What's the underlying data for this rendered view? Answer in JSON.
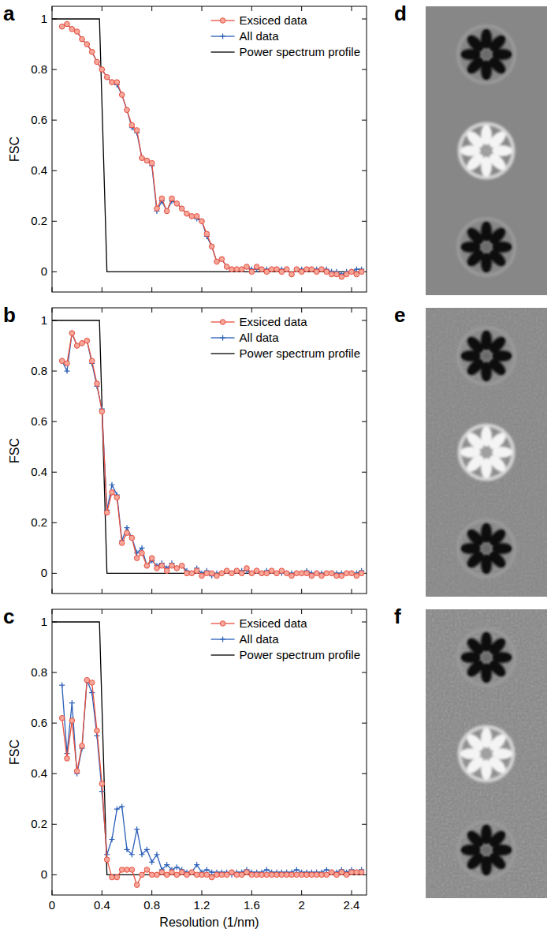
{
  "chart_data": [
    {
      "type": "line",
      "panel": "a",
      "ylabel": "FSC",
      "tick_labels": "y",
      "grid": false,
      "legend": "upper right",
      "xlim": [
        0,
        2.52
      ],
      "ylim": [
        -0.08,
        1.05
      ],
      "xticks": [
        0,
        0.4,
        0.8,
        1.2,
        1.6,
        2,
        2.4
      ],
      "yticks": [
        0,
        0.2,
        0.4,
        0.6,
        0.8,
        1
      ],
      "x": [
        0.08,
        0.12,
        0.16,
        0.2,
        0.24,
        0.28,
        0.32,
        0.36,
        0.4,
        0.44,
        0.48,
        0.52,
        0.56,
        0.6,
        0.64,
        0.68,
        0.72,
        0.76,
        0.8,
        0.84,
        0.88,
        0.92,
        0.96,
        1,
        1.04,
        1.08,
        1.12,
        1.16,
        1.2,
        1.24,
        1.28,
        1.32,
        1.36,
        1.4,
        1.44,
        1.48,
        1.52,
        1.56,
        1.6,
        1.64,
        1.68,
        1.72,
        1.76,
        1.8,
        1.84,
        1.88,
        1.92,
        1.96,
        2,
        2.04,
        2.08,
        2.12,
        2.16,
        2.2,
        2.24,
        2.28,
        2.32,
        2.36,
        2.4,
        2.44,
        2.48
      ],
      "series": [
        {
          "name": "Exsiced data",
          "color": "#e8503f",
          "marker": "circle",
          "line_style": "solid",
          "values": [
            0.97,
            0.98,
            0.96,
            0.95,
            0.92,
            0.9,
            0.87,
            0.83,
            0.8,
            0.77,
            0.75,
            0.75,
            0.7,
            0.64,
            0.58,
            0.56,
            0.45,
            0.44,
            0.43,
            0.25,
            0.29,
            0.24,
            0.29,
            0.27,
            0.25,
            0.23,
            0.22,
            0.22,
            0.2,
            0.15,
            0.1,
            0.04,
            0.05,
            0.02,
            0.01,
            0.01,
            0.01,
            0.02,
            0,
            0.02,
            0.01,
            0,
            0.01,
            0.01,
            0,
            0.01,
            -0.01,
            0.01,
            0,
            0.01,
            0.01,
            0,
            0.01,
            0,
            -0.01,
            -0.01,
            -0.02,
            -0.01,
            0,
            -0.01,
            0
          ]
        },
        {
          "name": "All data",
          "color": "#2b5fb8",
          "marker": "plus",
          "line_style": "solid",
          "values": [
            0.97,
            0.98,
            0.96,
            0.95,
            0.92,
            0.9,
            0.87,
            0.83,
            0.8,
            0.77,
            0.75,
            0.74,
            0.7,
            0.64,
            0.57,
            0.55,
            0.45,
            0.44,
            0.42,
            0.24,
            0.28,
            0.24,
            0.28,
            0.27,
            0.25,
            0.23,
            0.22,
            0.21,
            0.2,
            0.14,
            0.1,
            0.04,
            0.05,
            0.02,
            0.01,
            0.01,
            0.01,
            0.02,
            0.01,
            0.01,
            0.01,
            0.01,
            0.01,
            0.01,
            0.01,
            0.01,
            -0.01,
            0.01,
            0.01,
            0.01,
            0.01,
            0.01,
            0.01,
            0.01,
            0,
            0,
            -0.01,
            0,
            0,
            0.01,
            0.01
          ]
        },
        {
          "name": "Power spectrum profile",
          "color": "#000000",
          "line_style": "solid",
          "x": [
            0,
            0.38,
            0.44,
            2.5
          ],
          "values": [
            1,
            1,
            0,
            0
          ]
        }
      ]
    },
    {
      "type": "line",
      "panel": "b",
      "ylabel": "FSC",
      "tick_labels": "y",
      "grid": false,
      "legend": "upper right",
      "xlim": [
        0,
        2.52
      ],
      "ylim": [
        -0.08,
        1.05
      ],
      "xticks": [
        0,
        0.4,
        0.8,
        1.2,
        1.6,
        2,
        2.4
      ],
      "yticks": [
        0,
        0.2,
        0.4,
        0.6,
        0.8,
        1
      ],
      "x": [
        0.08,
        0.12,
        0.16,
        0.2,
        0.24,
        0.28,
        0.32,
        0.36,
        0.4,
        0.44,
        0.48,
        0.52,
        0.56,
        0.6,
        0.64,
        0.68,
        0.72,
        0.76,
        0.8,
        0.84,
        0.88,
        0.92,
        0.96,
        1,
        1.04,
        1.08,
        1.12,
        1.16,
        1.2,
        1.24,
        1.28,
        1.32,
        1.36,
        1.4,
        1.44,
        1.48,
        1.52,
        1.56,
        1.6,
        1.64,
        1.68,
        1.72,
        1.76,
        1.8,
        1.84,
        1.88,
        1.92,
        1.96,
        2,
        2.04,
        2.08,
        2.12,
        2.16,
        2.2,
        2.24,
        2.28,
        2.32,
        2.36,
        2.4,
        2.44,
        2.48
      ],
      "series": [
        {
          "name": "Exsiced data",
          "color": "#e8503f",
          "marker": "circle",
          "line_style": "solid",
          "values": [
            0.84,
            0.83,
            0.95,
            0.9,
            0.91,
            0.92,
            0.84,
            0.75,
            0.64,
            0.24,
            0.32,
            0.3,
            0.12,
            0.16,
            0.14,
            0.06,
            0.08,
            0.03,
            0.06,
            0.02,
            0.03,
            0.01,
            0.03,
            0.02,
            0.03,
            0,
            0,
            0.01,
            -0.01,
            0,
            0,
            -0.01,
            0,
            0.01,
            0,
            0.01,
            0,
            0.02,
            0,
            0.01,
            0,
            0,
            0.01,
            0,
            0.01,
            0,
            -0.01,
            0,
            0,
            0,
            -0.01,
            0,
            -0.01,
            0,
            0,
            -0.01,
            -0.01,
            0,
            0,
            -0.01,
            0
          ]
        },
        {
          "name": "All data",
          "color": "#2b5fb8",
          "marker": "plus",
          "line_style": "solid",
          "values": [
            0.84,
            0.8,
            0.95,
            0.9,
            0.91,
            0.92,
            0.83,
            0.74,
            0.65,
            0.25,
            0.35,
            0.31,
            0.13,
            0.18,
            0.14,
            0.08,
            0.1,
            0.03,
            0.05,
            0.03,
            0.04,
            0.02,
            0.04,
            0.02,
            0.03,
            0.01,
            0,
            0.02,
            0,
            0.01,
            -0.01,
            0,
            0,
            0.01,
            0,
            0.01,
            0.01,
            0.01,
            0,
            0.01,
            0,
            0.01,
            0.01,
            0,
            0,
            0,
            0,
            0,
            0,
            0.01,
            0,
            0,
            0,
            0,
            0,
            0,
            0,
            0,
            0,
            0,
            0.01
          ]
        },
        {
          "name": "Power spectrum profile",
          "color": "#000000",
          "line_style": "solid",
          "x": [
            0,
            0.38,
            0.44,
            2.5
          ],
          "values": [
            1,
            1,
            0,
            0
          ]
        }
      ]
    },
    {
      "type": "line",
      "panel": "c",
      "ylabel": "FSC",
      "xlabel": "Resolution (1/nm)",
      "tick_labels": true,
      "grid": false,
      "legend": "upper right",
      "xlim": [
        0,
        2.52
      ],
      "ylim": [
        -0.08,
        1.05
      ],
      "xticks": [
        0,
        0.4,
        0.8,
        1.2,
        1.6,
        2,
        2.4
      ],
      "yticks": [
        0,
        0.2,
        0.4,
        0.6,
        0.8,
        1
      ],
      "x": [
        0.08,
        0.12,
        0.16,
        0.2,
        0.24,
        0.28,
        0.32,
        0.36,
        0.4,
        0.44,
        0.48,
        0.52,
        0.56,
        0.6,
        0.64,
        0.68,
        0.72,
        0.76,
        0.8,
        0.84,
        0.88,
        0.92,
        0.96,
        1,
        1.04,
        1.08,
        1.12,
        1.16,
        1.2,
        1.24,
        1.28,
        1.32,
        1.36,
        1.4,
        1.44,
        1.48,
        1.52,
        1.56,
        1.6,
        1.64,
        1.68,
        1.72,
        1.76,
        1.8,
        1.84,
        1.88,
        1.92,
        1.96,
        2,
        2.04,
        2.08,
        2.12,
        2.16,
        2.2,
        2.24,
        2.28,
        2.32,
        2.36,
        2.4,
        2.44,
        2.48
      ],
      "series": [
        {
          "name": "Exsiced data",
          "color": "#e8503f",
          "marker": "circle",
          "line_style": "solid",
          "values": [
            0.62,
            0.46,
            0.61,
            0.41,
            0.51,
            0.77,
            0.76,
            0.57,
            0.36,
            0.06,
            -0.01,
            -0.01,
            0.02,
            0.02,
            0.02,
            -0.04,
            0,
            0.02,
            0,
            0,
            0.01,
            0,
            0.01,
            0,
            0.01,
            0,
            0.01,
            0,
            0,
            0,
            -0.01,
            0,
            0,
            0,
            0.01,
            0,
            0,
            0.01,
            0,
            0,
            0,
            0,
            0,
            0,
            0,
            0,
            0,
            0,
            0,
            0,
            0,
            0,
            0,
            0,
            0.01,
            0,
            0.01,
            0,
            0.01,
            0.01,
            0.01
          ]
        },
        {
          "name": "All data",
          "color": "#2b5fb8",
          "marker": "plus",
          "line_style": "solid",
          "values": [
            0.75,
            0.48,
            0.68,
            0.4,
            0.5,
            0.77,
            0.72,
            0.55,
            0.33,
            0.08,
            0.14,
            0.26,
            0.27,
            0.1,
            0.08,
            0.18,
            0.08,
            0.1,
            0.05,
            0.08,
            0.02,
            0.04,
            0.02,
            0.03,
            0.02,
            0.01,
            0.01,
            0.04,
            0.01,
            0.02,
            0.01,
            0.01,
            0.01,
            0.01,
            0,
            0.01,
            0.01,
            0.02,
            0.01,
            0.01,
            0.01,
            0.02,
            0.01,
            0.01,
            0.01,
            0.01,
            0.01,
            0.02,
            0.01,
            0.01,
            0.01,
            0.01,
            0.01,
            0.02,
            0.01,
            0.01,
            0.02,
            0.01,
            0.02,
            0.01,
            0.02
          ]
        },
        {
          "name": "Power spectrum profile",
          "color": "#000000",
          "line_style": "solid",
          "x": [
            0,
            0.38,
            0.44,
            2.5
          ],
          "values": [
            1,
            1,
            0,
            0
          ]
        }
      ]
    }
  ],
  "images": [
    {
      "panel": "d"
    },
    {
      "panel": "e"
    },
    {
      "panel": "f"
    }
  ]
}
